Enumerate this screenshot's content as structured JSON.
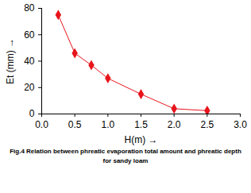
{
  "chart_data": {
    "type": "line",
    "title": "Fig.4 Relation between phreatic evaporation total amount and phreatic depth for sandy loam",
    "x_label": "H(m)",
    "y_label": "Et (mm)",
    "x": [
      0.25,
      0.5,
      0.75,
      1.0,
      1.5,
      2.0,
      2.5
    ],
    "series": [
      {
        "name": "sandy loam",
        "color": "#e8141c",
        "marker": "diamond",
        "values": [
          75,
          46,
          37,
          27,
          15,
          4,
          2.5
        ]
      }
    ],
    "xlim": [
      0,
      3
    ],
    "xticks": [
      {
        "value": 0,
        "label": "0.0"
      },
      0.5,
      {
        "value": 1,
        "label": "1.0"
      },
      1.5,
      {
        "value": 2,
        "label": "2.0"
      },
      2.5,
      {
        "value": 3,
        "label": "3.0"
      }
    ],
    "ylim": [
      0,
      80
    ],
    "yticks": [
      0,
      20,
      40,
      60,
      80
    ],
    "grid": false
  }
}
